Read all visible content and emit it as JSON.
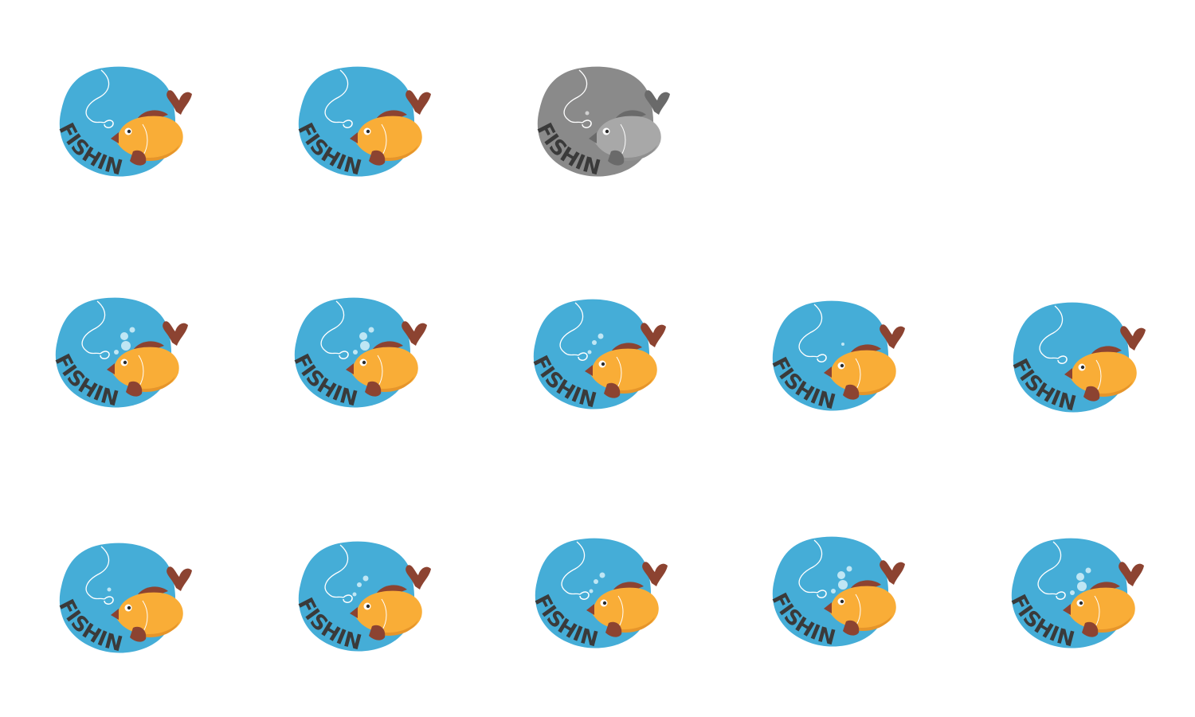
{
  "sheet": {
    "badge_label": "FISHING",
    "colors": {
      "water": "#45add7",
      "fish_body": "#f9ad37",
      "fish_fin": "#8c4331",
      "line": "#ffffff",
      "text": "#3a3a3a",
      "gray_water": "#8a8a8a",
      "gray_fish": "#a8a8a8",
      "gray_fin": "#6a6a6a"
    },
    "variants": [
      {
        "style": "color",
        "bubbles": 0
      },
      {
        "style": "color",
        "bubbles": 0
      },
      {
        "style": "grayscale",
        "bubbles": 1
      },
      {
        "style": "color",
        "bubbles": 4
      },
      {
        "style": "color",
        "bubbles": 4
      },
      {
        "style": "color",
        "bubbles": 3
      },
      {
        "style": "color",
        "bubbles": 2
      },
      {
        "style": "color",
        "bubbles": 0
      },
      {
        "style": "color",
        "bubbles": 1
      },
      {
        "style": "color",
        "bubbles": 3
      },
      {
        "style": "color",
        "bubbles": 3
      },
      {
        "style": "color",
        "bubbles": 4
      },
      {
        "style": "color",
        "bubbles": 4
      }
    ]
  }
}
